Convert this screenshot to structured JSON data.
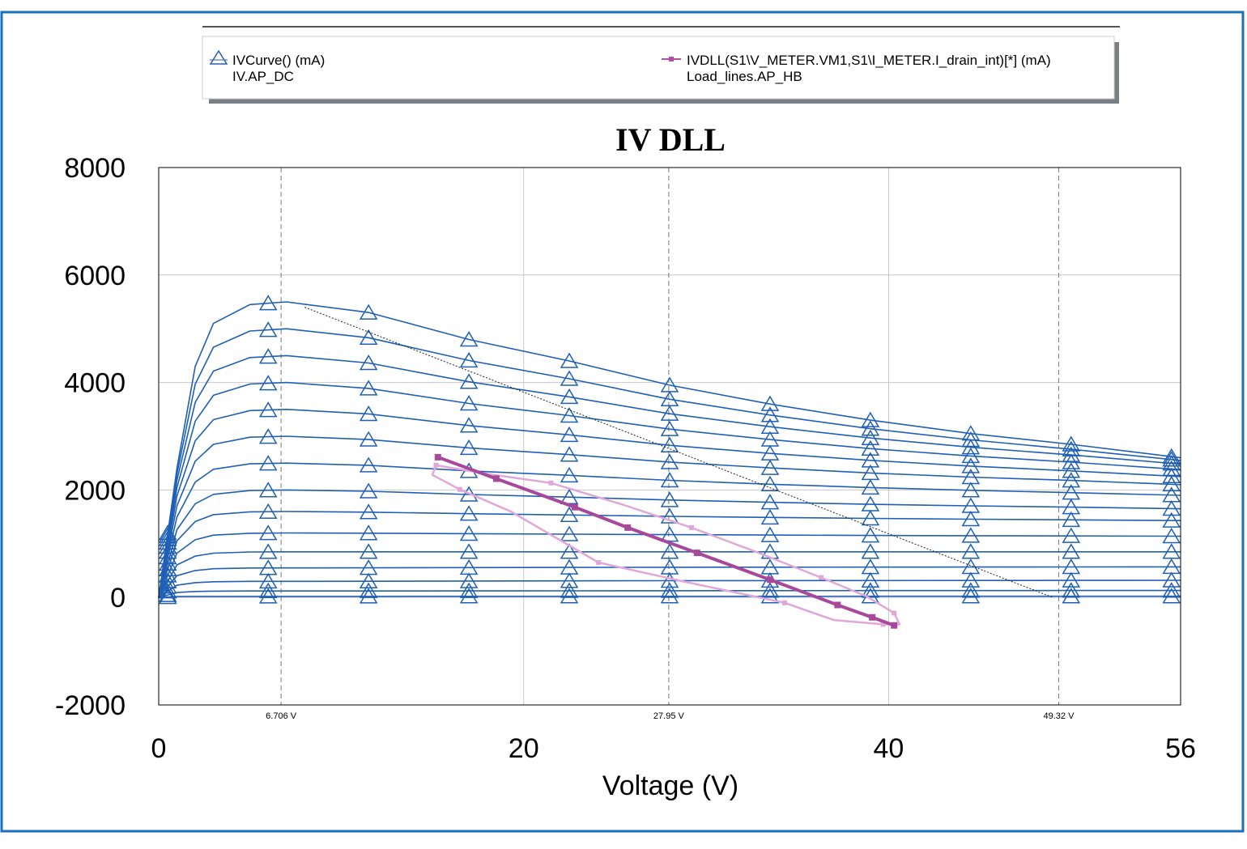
{
  "legend": {
    "entries": [
      {
        "label": "IVCurve() (mA)",
        "sublabel": "IV.AP_DC",
        "marker": "triangle",
        "color": "#2a5db0"
      },
      {
        "label": "IVDLL(S1\\V_METER.VM1,S1\\I_METER.I_drain_int)[*] (mA)",
        "sublabel": "Load_lines.AP_HB",
        "marker": "square",
        "color": "#b050a0"
      }
    ]
  },
  "chart_data": {
    "type": "line",
    "title": "IV DLL",
    "xlabel": "Voltage (V)",
    "ylabel": "",
    "xlim": [
      0,
      56
    ],
    "ylim": [
      -2000,
      8000
    ],
    "x_ticks": [
      "0",
      "20",
      "40",
      "56"
    ],
    "x_tick_values": [
      0,
      20,
      40,
      56
    ],
    "y_ticks": [
      "8000",
      "6000",
      "4000",
      "2000",
      "0",
      "-2000"
    ],
    "y_tick_values": [
      8000,
      6000,
      4000,
      2000,
      0,
      -2000
    ],
    "grid": true,
    "legend_position": "top",
    "colors": {
      "iv": "#1f5fb4",
      "loadline": "#a8489a",
      "loadline_loop": "#e0a8d8",
      "frame": "#1a6fc0"
    },
    "vertical_markers": [
      {
        "value": 6.706,
        "label": "6.706 V"
      },
      {
        "value": 27.95,
        "label": "27.95 V"
      },
      {
        "value": 49.32,
        "label": "49.32 V"
      }
    ],
    "iv_x": [
      0,
      1,
      2,
      3,
      5,
      7,
      11.5,
      17,
      22.5,
      28,
      33.5,
      39,
      44.5,
      50,
      56
    ],
    "iv_marker_x": [
      0.5,
      6,
      11.5,
      17,
      22.5,
      28,
      33.5,
      39,
      44.5,
      50,
      55.5
    ],
    "iv_series": [
      [
        0,
        2400,
        4300,
        5100,
        5450,
        5500,
        5303,
        4800,
        4400,
        3950,
        3600,
        3300,
        3050,
        2850,
        2600
      ],
      [
        0,
        2300,
        3970,
        4657,
        4958,
        5000,
        4833,
        4410,
        4069,
        3689,
        3395,
        3140,
        2932,
        2758,
        2550
      ],
      [
        0,
        2180,
        3630,
        4212,
        4464,
        4500,
        4363,
        4013,
        3732,
        3419,
        3177,
        2967,
        2795,
        2652,
        2480
      ],
      [
        0,
        2044,
        3280,
        3762,
        3971,
        4000,
        3890,
        3610,
        3384,
        3133,
        2939,
        2770,
        2633,
        2518,
        2380
      ],
      [
        0,
        1887,
        2915,
        3308,
        3477,
        3500,
        3415,
        3199,
        3025,
        2831,
        2681,
        2551,
        2445,
        2356,
        2250
      ],
      [
        0,
        1704,
        2536,
        2849,
        2982,
        3000,
        2939,
        2783,
        2658,
        2519,
        2411,
        2317,
        2240,
        2177,
        2100
      ],
      [
        0,
        1497,
        2148,
        2386,
        2486,
        2500,
        2459,
        2355,
        2272,
        2179,
        2107,
        2045,
        1994,
        1951,
        1900
      ],
      [
        0,
        1261,
        1744,
        1918,
        1990,
        2000,
        1976,
        1916,
        1867,
        1813,
        1771,
        1734,
        1705,
        1680,
        1650
      ],
      [
        0,
        1053,
        1413,
        1540,
        1593,
        1600,
        1588,
        1559,
        1535,
        1509,
        1489,
        1471,
        1457,
        1444,
        1430
      ],
      [
        0,
        824,
        1074,
        1159,
        1195,
        1200,
        1196,
        1186,
        1177,
        1168,
        1161,
        1154,
        1149,
        1145,
        1140
      ],
      [
        0,
        606,
        769,
        824,
        847,
        850,
        850,
        850,
        850,
        850,
        850,
        850,
        850,
        850,
        850
      ],
      [
        0,
        405,
        502,
        535,
        548,
        550,
        551,
        555,
        558,
        561,
        563,
        565,
        567,
        568,
        570
      ],
      [
        0,
        227,
        276,
        292,
        299,
        300,
        301,
        305,
        308,
        311,
        313,
        315,
        317,
        318,
        320
      ],
      [
        0,
        92,
        111,
        117,
        120,
        120,
        121,
        122,
        124,
        125,
        127,
        128,
        128,
        129,
        130
      ],
      [
        0,
        16,
        19,
        20,
        20,
        20,
        20,
        21,
        21,
        21,
        21,
        22,
        22,
        22,
        22
      ]
    ],
    "loadline": [
      [
        15.3,
        2610
      ],
      [
        18.5,
        2210
      ],
      [
        22.8,
        1680
      ],
      [
        25.7,
        1300
      ],
      [
        29.5,
        830
      ],
      [
        33.5,
        330
      ],
      [
        37.2,
        -140
      ],
      [
        39.1,
        -370
      ],
      [
        40.3,
        -520
      ]
    ],
    "loadline_loop": [
      [
        15.2,
        2460
      ],
      [
        18.0,
        2300
      ],
      [
        21.5,
        2130
      ],
      [
        25.5,
        1720
      ],
      [
        29.2,
        1300
      ],
      [
        32.8,
        840
      ],
      [
        36.3,
        370
      ],
      [
        38.8,
        20
      ],
      [
        40.3,
        -290
      ],
      [
        40.6,
        -500
      ],
      [
        39.7,
        -500
      ],
      [
        37.0,
        -420
      ],
      [
        34.3,
        -100
      ],
      [
        29.0,
        280
      ],
      [
        24.1,
        650
      ],
      [
        19.3,
        1600
      ],
      [
        16.5,
        2010
      ],
      [
        15.0,
        2280
      ],
      [
        15.2,
        2460
      ]
    ],
    "reference_line": [
      [
        8,
        5400
      ],
      [
        49,
        0
      ]
    ]
  }
}
